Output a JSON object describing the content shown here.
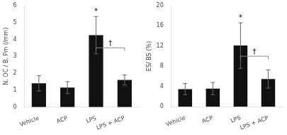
{
  "chart_data": [
    {
      "type": "bar",
      "ylabel": "N. OC / B. Pm (/mm)",
      "categories": [
        "Vehicle",
        "ACP",
        "LPS",
        "LPS + ACP"
      ],
      "values": [
        1.4,
        1.15,
        4.25,
        1.6
      ],
      "errors": [
        0.45,
        0.35,
        1.1,
        0.3
      ],
      "color": "#111111",
      "ylim": [
        0,
        6
      ],
      "yticks": [
        0,
        1,
        2,
        3,
        4,
        5,
        6
      ],
      "grid": false,
      "annotations": [
        {
          "text": "*",
          "category": "LPS"
        },
        {
          "text": "†",
          "from": "LPS",
          "to": "LPS + ACP",
          "y": 3.5
        }
      ]
    },
    {
      "type": "bar",
      "ylabel": "ES/ BS (%)",
      "categories": [
        "Vehicle",
        "ACP",
        "LPS",
        "LPS + ACP"
      ],
      "values": [
        3.5,
        3.6,
        12.1,
        5.5
      ],
      "errors": [
        1.1,
        1.2,
        4.5,
        1.8
      ],
      "color": "#111111",
      "ylim": [
        0,
        20
      ],
      "yticks": [
        0,
        4,
        8,
        12,
        16,
        20
      ],
      "grid": false,
      "annotations": [
        {
          "text": "*",
          "category": "LPS"
        },
        {
          "text": "†",
          "from": "LPS",
          "to": "LPS + ACP",
          "y": 10.0
        }
      ]
    }
  ]
}
